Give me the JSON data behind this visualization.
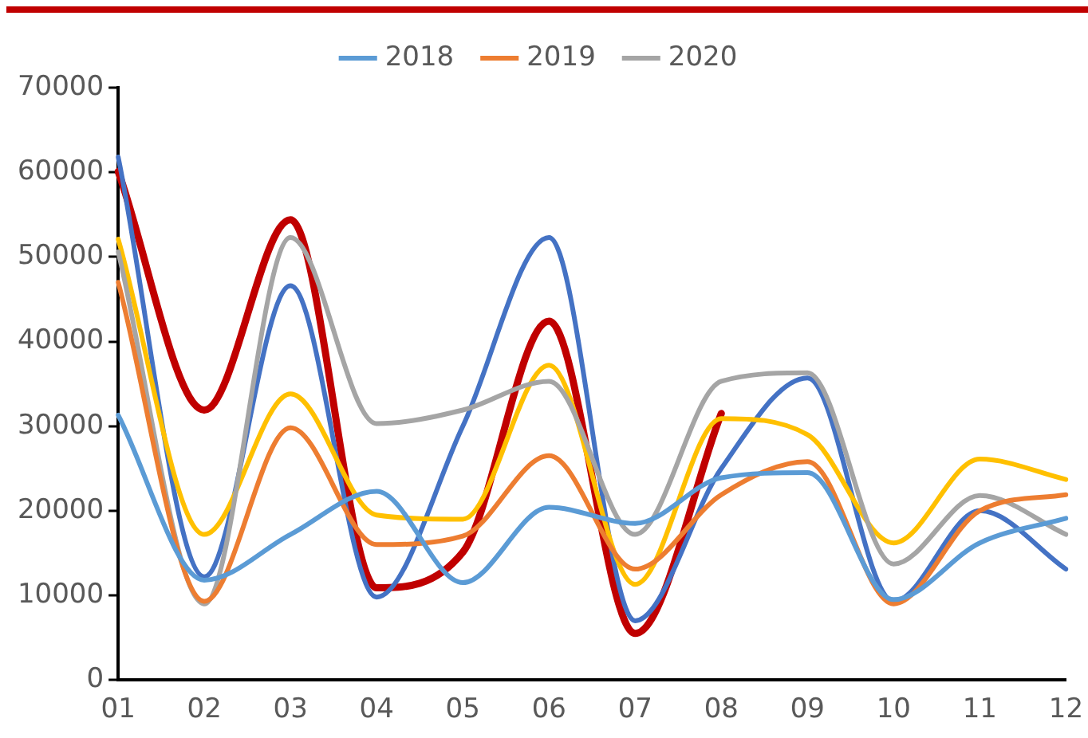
{
  "chart_data": {
    "type": "line",
    "categories": [
      "01",
      "02",
      "03",
      "04",
      "05",
      "06",
      "07",
      "08",
      "09",
      "10",
      "11",
      "12"
    ],
    "series": [
      {
        "name": "2018",
        "color": "#5b9bd5",
        "values": [
          31300,
          11800,
          17200,
          22300,
          11500,
          20400,
          18500,
          23900,
          24500,
          9500,
          16200,
          19100
        ]
      },
      {
        "name": "2019",
        "color": "#ed7d31",
        "values": [
          47000,
          9300,
          29800,
          16000,
          17000,
          26500,
          13100,
          21900,
          25800,
          9000,
          20000,
          21900
        ]
      },
      {
        "name": "2020",
        "color": "#a5a5a5",
        "values": [
          50600,
          9000,
          52300,
          30300,
          31900,
          35300,
          17200,
          35300,
          36300,
          13700,
          21800,
          17200
        ]
      },
      {
        "color": "#ffc000",
        "values": [
          52100,
          17200,
          33800,
          19500,
          19000,
          37200,
          11300,
          30900,
          29000,
          16200,
          26100,
          23700
        ]
      },
      {
        "color": "#4472c4",
        "values": [
          61800,
          12200,
          46600,
          9800,
          30000,
          52300,
          7000,
          25000,
          35700,
          9300,
          20000,
          13100
        ]
      },
      {
        "color": "#c00000",
        "values": [
          60100,
          31900,
          54400,
          10900,
          15100,
          42400,
          5500,
          31500,
          null,
          null,
          null,
          null
        ]
      }
    ],
    "ylim": [
      0,
      70000
    ],
    "yticks": [
      0,
      10000,
      20000,
      30000,
      40000,
      50000,
      60000,
      70000
    ],
    "grid": false,
    "legend": "top",
    "marker": "none",
    "line_style": "solid"
  }
}
